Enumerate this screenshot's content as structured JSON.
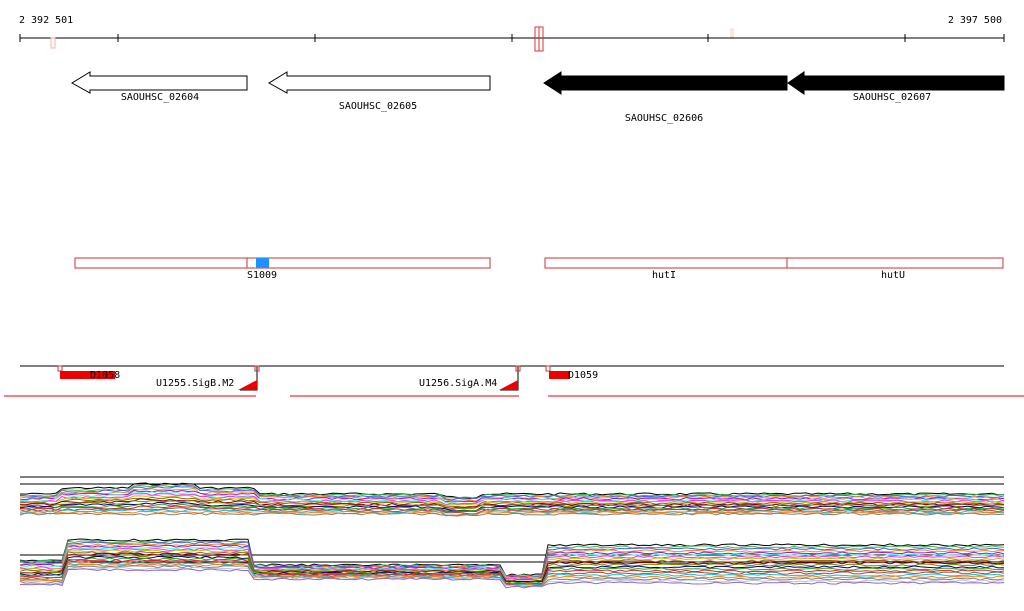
{
  "ruler": {
    "start_label": "2 392 501",
    "end_label": "2 397 500"
  },
  "genes": [
    {
      "id": "g1",
      "label": "SAOUHSC_02604",
      "strand": "-",
      "style": "outline"
    },
    {
      "id": "g2",
      "label": "SAOUHSC_02605",
      "strand": "-",
      "style": "outline"
    },
    {
      "id": "g3",
      "label": "SAOUHSC_02606",
      "strand": "-",
      "style": "filled"
    },
    {
      "id": "g4",
      "label": "SAOUHSC_02607",
      "strand": "-",
      "style": "filled"
    }
  ],
  "transcripts": [
    {
      "id": "t1",
      "label": "S1009"
    },
    {
      "id": "t2",
      "label": "hutI"
    },
    {
      "id": "t3",
      "label": "hutU"
    }
  ],
  "features": [
    {
      "id": "f1",
      "label": "D1058"
    },
    {
      "id": "f2",
      "label": "U1255.SigB.M2"
    },
    {
      "id": "f3",
      "label": "U1256.SigA.M4"
    },
    {
      "id": "f4",
      "label": "D1059"
    }
  ],
  "colors": {
    "gene_fill": "#000000",
    "transcript_outline": "#cc3333",
    "transcript_marker": "#1e90ff",
    "feature_red": "#ee0000",
    "track_line": "#000000"
  },
  "expression_palette": [
    "#e6194b",
    "#3cb44b",
    "#4363d8",
    "#f58231",
    "#911eb4",
    "#46f0f0",
    "#f032e6",
    "#bcbd22",
    "#9a6324",
    "#800000",
    "#808000",
    "#000075",
    "#2ca02c",
    "#d62728",
    "#8c564b",
    "#17becf",
    "#ff7f0e",
    "#7f7f7f",
    "#aec7e8",
    "#9467bd"
  ]
}
